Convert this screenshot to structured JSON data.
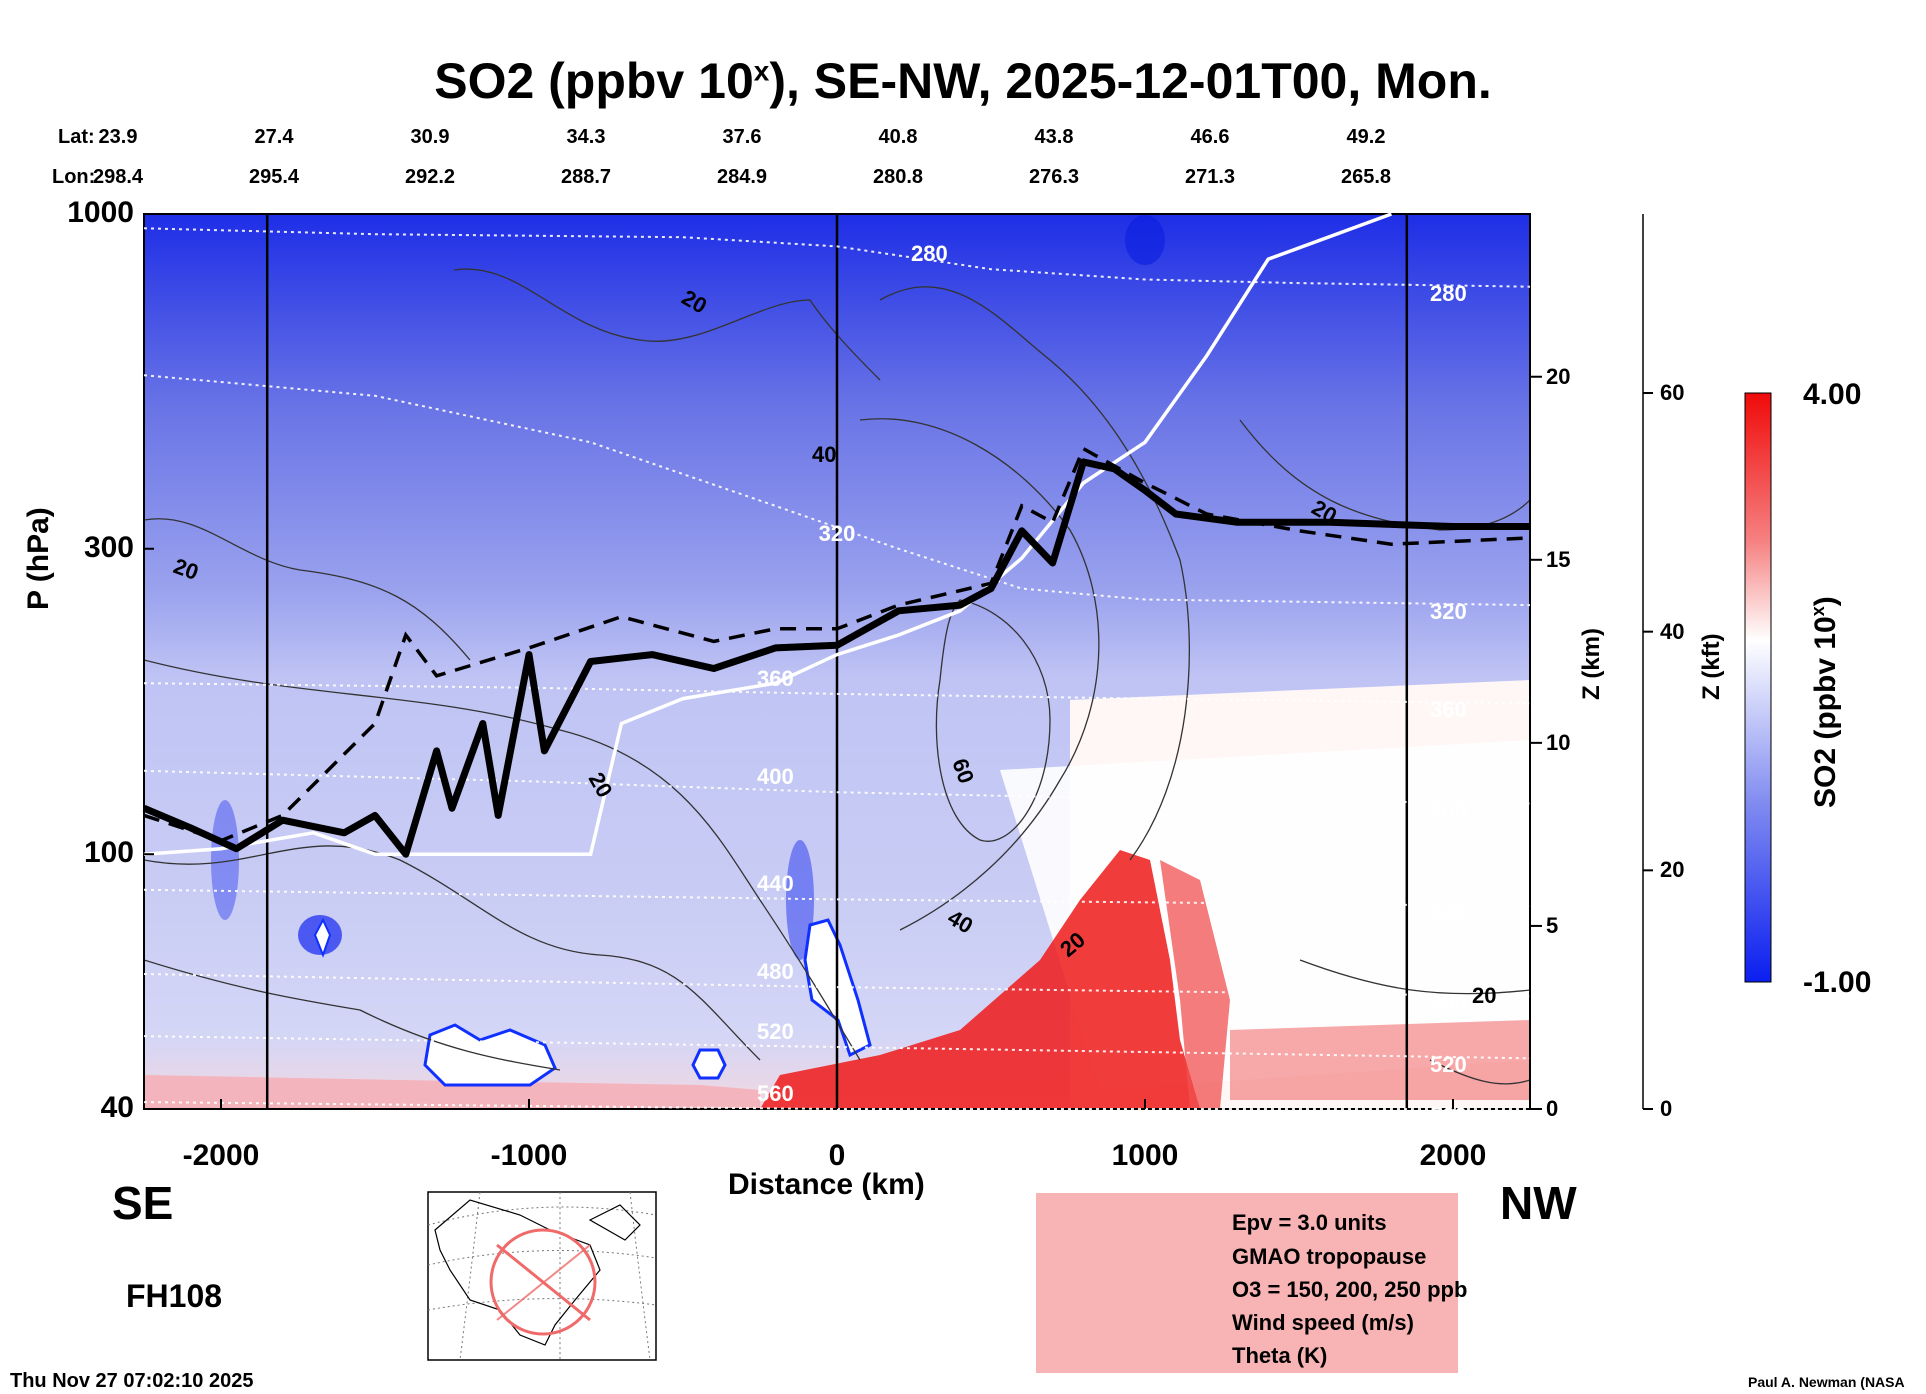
{
  "title": "SO2 (ppbv 10",
  "title_sup": "x",
  "title_rest": "), SE-NW, 2025-12-01T00, Mon.",
  "lat_label": "Lat:",
  "lon_label": "Lon:",
  "lats": [
    "23.9",
    "27.4",
    "30.9",
    "34.3",
    "37.6",
    "40.8",
    "43.8",
    "46.6",
    "49.2"
  ],
  "lons": [
    "298.4",
    "295.4",
    "292.2",
    "288.7",
    "284.9",
    "280.8",
    "276.3",
    "271.3",
    "265.8"
  ],
  "direction_left": "SE",
  "direction_right": "NW",
  "forecast_hour": "FH108",
  "timestamp": "Thu Nov 27 07:02:10 2025",
  "credit": "Paul A. Newman (NASA",
  "colors": {
    "low": "#0a1ef0",
    "mid": "#ffffff",
    "high": "#f00a0a",
    "legend_bg": "#f8b4b4"
  },
  "chart_data": {
    "type": "heatmap",
    "title": "SO2 (ppbv 10^x), SE-NW, 2025-12-01T00, Mon.",
    "xlabel": "Distance (km)",
    "ylabel": "P (hPa)",
    "y2label": "Z (km)",
    "y3label": "Z (kft)",
    "colorbar_label": "SO2 (ppbv 10^x)",
    "xlim": [
      -2250,
      2250
    ],
    "ylim": [
      1000,
      40
    ],
    "y_scale": "log",
    "x_ticks": [
      -2000,
      -1000,
      0,
      1000,
      2000
    ],
    "x_tick_labels": [
      "-2000",
      "-1000",
      "0",
      "1000",
      "2000"
    ],
    "y_ticks": [
      40,
      100,
      300,
      1000
    ],
    "y_tick_labels": [
      "40",
      "100",
      "300",
      "1000"
    ],
    "z_km_ticks": [
      0,
      5,
      10,
      15,
      20
    ],
    "z_kft_ticks": [
      0,
      20,
      40,
      60
    ],
    "colorbar_range": [
      -1.0,
      4.0
    ],
    "colorbar_tick_labels": [
      "4.00",
      "-1.00"
    ],
    "legend": [
      "Epv = 3.0 units",
      "GMAO tropopause",
      "O3 = 150, 200, 250 ppb",
      "Wind speed (m/s)",
      "Theta (K)"
    ],
    "theta_contours": [
      {
        "label": "280",
        "points": [
          [
            -2250,
            950
          ],
          [
            -1500,
            930
          ],
          [
            -500,
            920
          ],
          [
            0,
            890
          ],
          [
            500,
            820
          ],
          [
            1000,
            790
          ],
          [
            1500,
            780
          ],
          [
            2250,
            770
          ]
        ]
      },
      {
        "label": "320",
        "points": [
          [
            -2250,
            560
          ],
          [
            -1500,
            520
          ],
          [
            -800,
            440
          ],
          [
            -200,
            350
          ],
          [
            200,
            300
          ],
          [
            600,
            260
          ],
          [
            1000,
            250
          ],
          [
            2250,
            245
          ]
        ]
      },
      {
        "label": "360",
        "points": [
          [
            -2250,
            185
          ],
          [
            -1000,
            182
          ],
          [
            0,
            178
          ],
          [
            1000,
            175
          ],
          [
            2250,
            172
          ]
        ]
      },
      {
        "label": "400",
        "points": [
          [
            -2250,
            135
          ],
          [
            -1000,
            130
          ],
          [
            0,
            125
          ],
          [
            1000,
            122
          ],
          [
            2250,
            120
          ]
        ]
      },
      {
        "label": "440",
        "points": [
          [
            -2250,
            88
          ],
          [
            0,
            85
          ],
          [
            2250,
            83
          ]
        ]
      },
      {
        "label": "480",
        "points": [
          [
            -2250,
            65
          ],
          [
            0,
            62
          ],
          [
            2250,
            60
          ]
        ]
      },
      {
        "label": "520",
        "points": [
          [
            -2250,
            52
          ],
          [
            0,
            50
          ],
          [
            2250,
            48
          ]
        ]
      },
      {
        "label": "560",
        "points": [
          [
            -2250,
            41
          ],
          [
            0,
            40
          ],
          [
            2250,
            40
          ]
        ]
      }
    ],
    "wind_contour_labels": [
      "20",
      "20",
      "20",
      "20",
      "20",
      "20",
      "40",
      "40",
      "60"
    ],
    "tropopause": [
      [
        -2250,
        118
      ],
      [
        -2100,
        110
      ],
      [
        -1950,
        102
      ],
      [
        -1800,
        113
      ],
      [
        -1600,
        108
      ],
      [
        -1500,
        115
      ],
      [
        -1400,
        100
      ],
      [
        -1300,
        145
      ],
      [
        -1250,
        118
      ],
      [
        -1150,
        160
      ],
      [
        -1100,
        115
      ],
      [
        -1000,
        205
      ],
      [
        -950,
        145
      ],
      [
        -800,
        200
      ],
      [
        -600,
        205
      ],
      [
        -400,
        195
      ],
      [
        -200,
        210
      ],
      [
        0,
        212
      ],
      [
        200,
        240
      ],
      [
        400,
        245
      ],
      [
        500,
        260
      ],
      [
        600,
        320
      ],
      [
        700,
        285
      ],
      [
        800,
        410
      ],
      [
        900,
        400
      ],
      [
        1000,
        370
      ],
      [
        1100,
        340
      ],
      [
        1300,
        330
      ],
      [
        1600,
        330
      ],
      [
        2000,
        325
      ],
      [
        2250,
        325
      ]
    ],
    "epv_3": [
      [
        -2250,
        115
      ],
      [
        -2000,
        105
      ],
      [
        -1800,
        115
      ],
      [
        -1500,
        160
      ],
      [
        -1400,
        220
      ],
      [
        -1300,
        190
      ],
      [
        -1000,
        210
      ],
      [
        -700,
        235
      ],
      [
        -400,
        215
      ],
      [
        -200,
        225
      ],
      [
        0,
        225
      ],
      [
        200,
        245
      ],
      [
        500,
        265
      ],
      [
        600,
        350
      ],
      [
        700,
        330
      ],
      [
        800,
        430
      ],
      [
        1000,
        380
      ],
      [
        1200,
        340
      ],
      [
        1500,
        320
      ],
      [
        1800,
        305
      ],
      [
        2250,
        312
      ]
    ],
    "ozone_250": [
      [
        -2250,
        100
      ],
      [
        -2000,
        102
      ],
      [
        -1700,
        108
      ],
      [
        -1500,
        100
      ],
      [
        -800,
        100
      ],
      [
        -700,
        160
      ],
      [
        -500,
        175
      ],
      [
        -200,
        185
      ],
      [
        0,
        205
      ],
      [
        200,
        220
      ],
      [
        400,
        240
      ],
      [
        600,
        290
      ],
      [
        800,
        380
      ],
      [
        1000,
        440
      ],
      [
        1200,
        600
      ],
      [
        1400,
        850
      ],
      [
        1800,
        1000
      ]
    ]
  }
}
